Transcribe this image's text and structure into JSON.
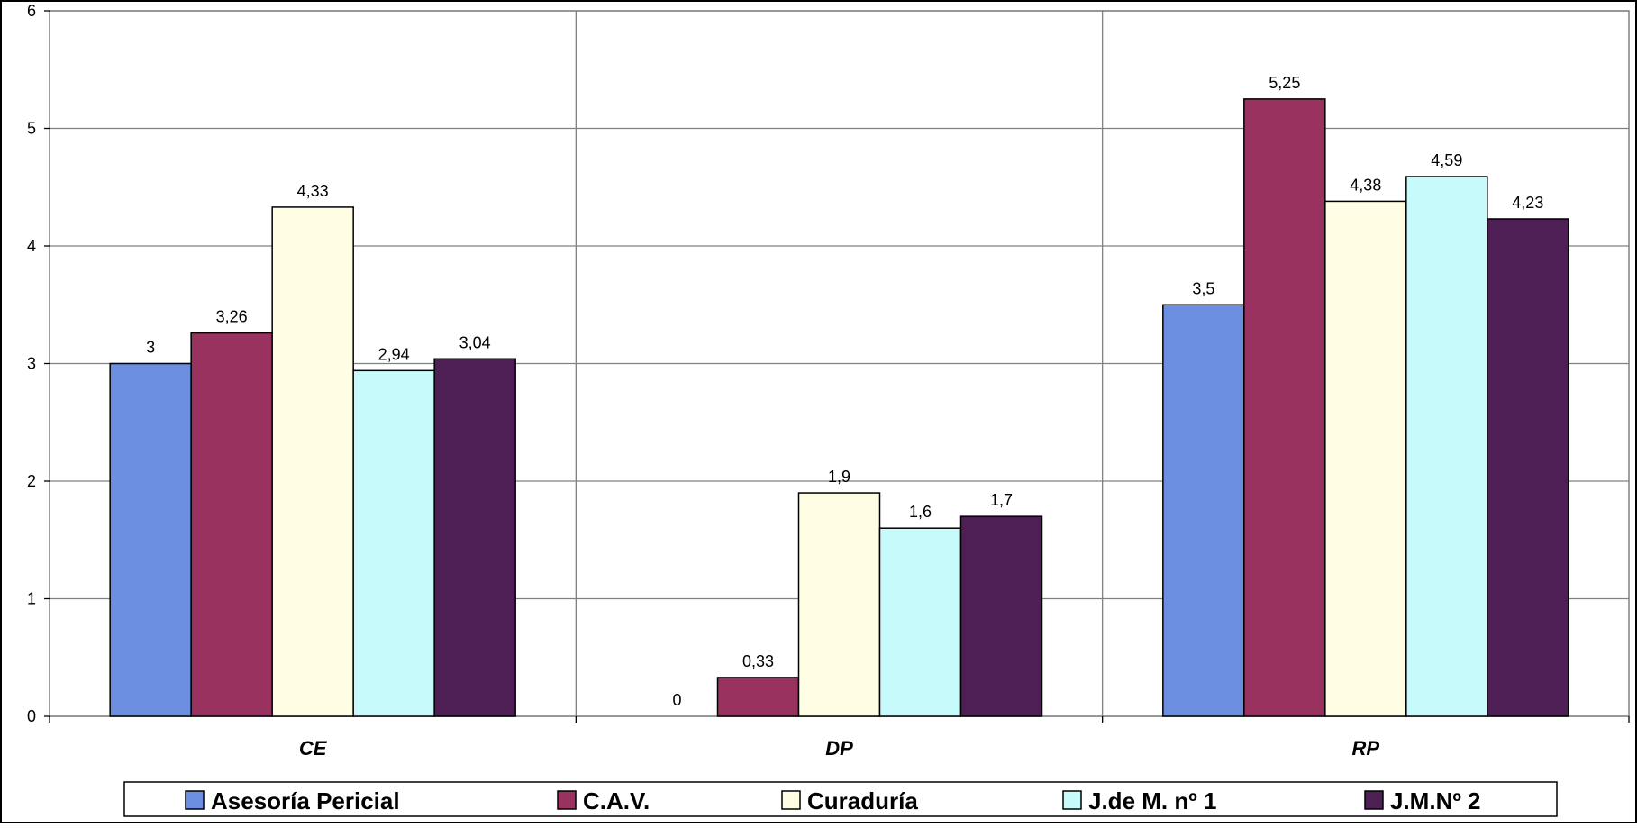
{
  "chart_data": {
    "type": "bar",
    "title": "",
    "xlabel": "",
    "ylabel": "",
    "categories": [
      "CE",
      "DP",
      "RP"
    ],
    "ylim": [
      0,
      6
    ],
    "yticks": [
      0,
      1,
      2,
      3,
      4,
      5,
      6
    ],
    "grid": true,
    "legend_position": "bottom",
    "series": [
      {
        "name": "Asesoría Pericial",
        "color": "#6b8ee0",
        "values": [
          3,
          0,
          3.5
        ],
        "labels": [
          "3",
          "0",
          "3,5"
        ]
      },
      {
        "name": "C.A.V.",
        "color": "#99325f",
        "values": [
          3.26,
          0.33,
          5.25
        ],
        "labels": [
          "3,26",
          "0,33",
          "5,25"
        ]
      },
      {
        "name": "Curaduría",
        "color": "#fffde3",
        "values": [
          4.33,
          1.9,
          4.38
        ],
        "labels": [
          "4,33",
          "1,9",
          "4,38"
        ]
      },
      {
        "name": "J.de M. nº 1",
        "color": "#c7fafa",
        "values": [
          2.94,
          1.6,
          4.59
        ],
        "labels": [
          "2,94",
          "1,6",
          "4,59"
        ]
      },
      {
        "name": "J.M.Nº 2",
        "color": "#4d1f55",
        "values": [
          3.04,
          1.7,
          4.23
        ],
        "labels": [
          "3,04",
          "1,7",
          "4,23"
        ]
      }
    ]
  }
}
